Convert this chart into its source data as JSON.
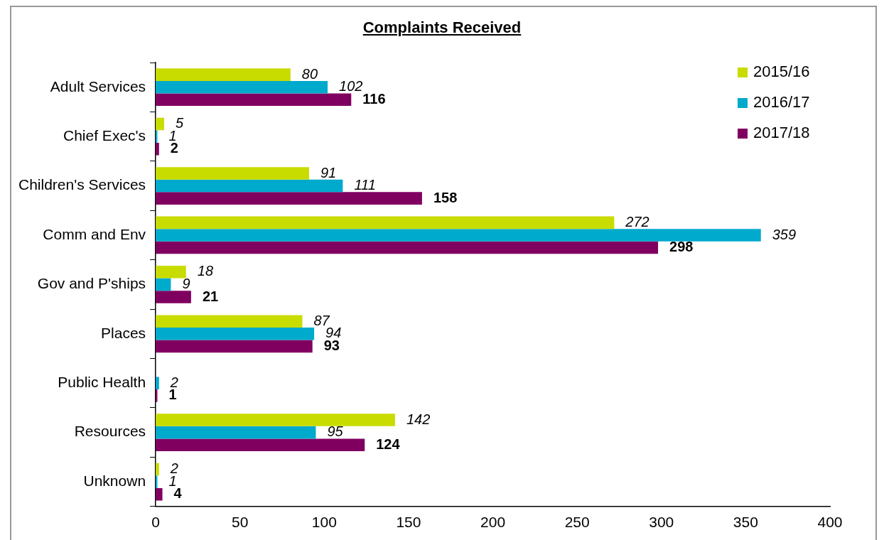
{
  "chart_data": {
    "type": "bar",
    "orientation": "horizontal",
    "title": "Complaints Received",
    "categories": [
      "Adult Services",
      "Chief Exec's",
      "Children's Services",
      "Comm and Env",
      "Gov and P'ships",
      "Places",
      "Public Health",
      "Resources",
      "Unknown"
    ],
    "series": [
      {
        "name": "2015/16",
        "color": "#c8dc00",
        "values": [
          80,
          5,
          91,
          272,
          18,
          87,
          null,
          142,
          2
        ]
      },
      {
        "name": "2016/17",
        "color": "#00aacc",
        "values": [
          102,
          1,
          111,
          359,
          9,
          94,
          2,
          95,
          1
        ]
      },
      {
        "name": "2017/18",
        "color": "#800060",
        "values": [
          116,
          2,
          158,
          298,
          21,
          93,
          1,
          124,
          4
        ]
      }
    ],
    "xlim": [
      0,
      400
    ],
    "xticks": [
      0,
      50,
      100,
      150,
      200,
      250,
      300,
      350,
      400
    ],
    "grid": false,
    "legend": "top right",
    "data_labels": true
  }
}
